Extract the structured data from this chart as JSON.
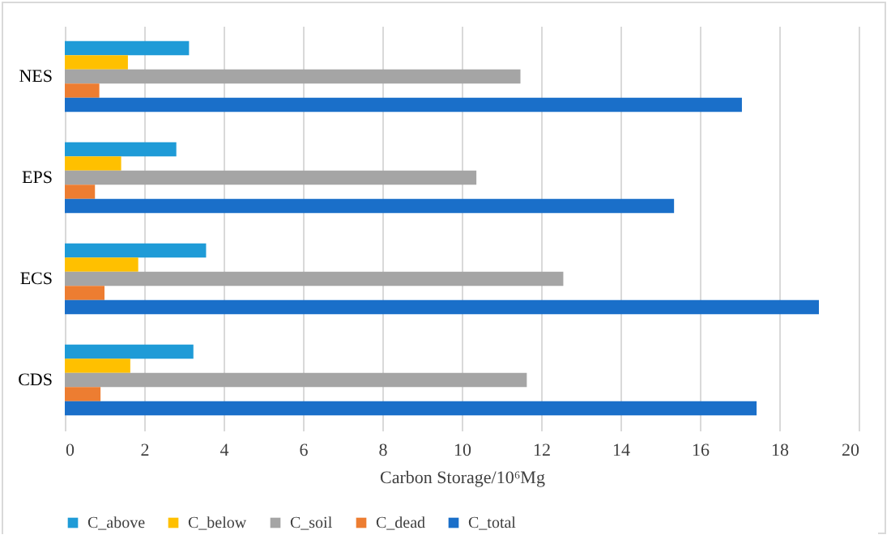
{
  "chart_data": {
    "type": "bar",
    "orientation": "horizontal",
    "xlabel": "Carbon Storage/10⁶Mg",
    "categories": [
      "NES",
      "EPS",
      "ECS",
      "CDS"
    ],
    "series": [
      {
        "name": "C_above",
        "color": "#1f9bd7",
        "values": [
          3.13,
          2.81,
          3.56,
          3.24
        ]
      },
      {
        "name": "C_below",
        "color": "#ffc000",
        "values": [
          1.59,
          1.42,
          1.85,
          1.65
        ]
      },
      {
        "name": "C_soil",
        "color": "#a5a5a5",
        "values": [
          11.48,
          10.37,
          12.56,
          11.64
        ]
      },
      {
        "name": "C_dead",
        "color": "#ed7d31",
        "values": [
          0.87,
          0.76,
          1.0,
          0.9
        ]
      },
      {
        "name": "C_total",
        "color": "#1a6fc9",
        "values": [
          17.06,
          15.35,
          19.0,
          17.43
        ]
      }
    ],
    "xlim": [
      0,
      20
    ],
    "xticks": [
      0,
      2,
      4,
      6,
      8,
      10,
      12,
      14,
      16,
      18,
      20
    ],
    "grid": "x",
    "legend": "bottom"
  }
}
